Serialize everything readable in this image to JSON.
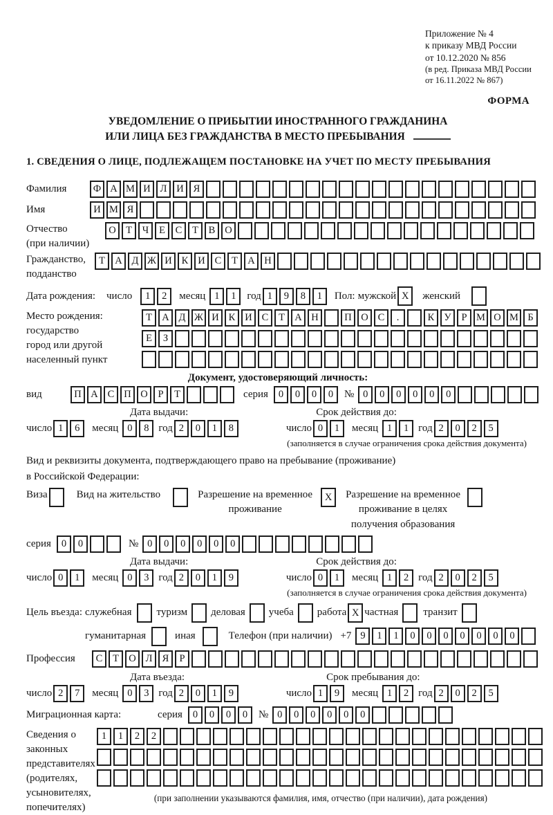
{
  "doc": {
    "appendix_line1": "Приложение № 4",
    "appendix_line2": "к приказу МВД России",
    "appendix_line3": "от 10.12.2020 № 856",
    "appendix_line4": "(в ред. Приказа МВД России",
    "appendix_line5": "от 16.11.2022 № 867)",
    "form_label": "ФОРМА",
    "title_line1": "УВЕДОМЛЕНИЕ О ПРИБЫТИИ ИНОСТРАННОГО ГРАЖДАНИНА",
    "title_line2": "ИЛИ ЛИЦА БЕЗ ГРАЖДАНСТВА В МЕСТО ПРЕБЫВАНИЯ",
    "section1_heading": "1. СВЕДЕНИЯ О ЛИЦЕ, ПОДЛЕЖАЩЕМ ПОСТАНОВКЕ НА УЧЕТ ПО МЕСТУ ПРЕБЫВАНИЯ"
  },
  "shared": {
    "day": "число",
    "month": "месяц",
    "year": "год",
    "issue_date": "Дата выдачи:",
    "valid_until": "Срок действия до:",
    "series": "серия",
    "number": "№",
    "restriction_note": "(заполняется в случае ограничения срока действия документа)"
  },
  "person": {
    "surname_label": "Фамилия",
    "surname": {
      "text": "ФАМИЛИЯ",
      "count": 27
    },
    "name_label": "Имя",
    "name": {
      "text": "ИМЯ",
      "count": 27
    },
    "patronymic_label1": "Отчество",
    "patronymic_label2": "(при наличии)",
    "patronymic": {
      "text": "ОТЧЕСТВО",
      "count": 26
    },
    "citizenship_label1": "Гражданство,",
    "citizenship_label2": "подданство",
    "citizenship": {
      "text": "ТАДЖИКИСТАН",
      "count": 27
    },
    "birth_date_label": "Дата рождения:",
    "birth_day": "12",
    "birth_month": "11",
    "birth_year": "1981",
    "sex_label": "Пол:",
    "male_label": "мужской",
    "male_cb": "X",
    "female_label": "женский",
    "female_cb": {
      "text": "",
      "count": 1
    },
    "birth_place_label1": "Место рождения:",
    "birth_place_label2": "государство",
    "birth_place_label3": "город или другой",
    "birth_place_label4": "населенный пункт",
    "birth_place_row1": {
      "text": "ТАДЖИКИСТАН ПОС. КУРМОМБ",
      "count": 24
    },
    "birth_place_row2": {
      "text": "ЕЗ",
      "count": 24
    },
    "birth_place_row3": {
      "text": "",
      "count": 24
    }
  },
  "identity_doc": {
    "heading": "Документ, удостоверяющий личность:",
    "kind_label": "вид",
    "kind": {
      "text": "ПАСПОРТ",
      "count": 10
    },
    "series": "0000",
    "number": {
      "text": "000000",
      "count": 11
    },
    "issue_day": "16",
    "issue_month": "08",
    "issue_year": "2018",
    "valid_day": "01",
    "valid_month": "11",
    "valid_year": "2025"
  },
  "stay_doc": {
    "heading_line1": "Вид и реквизиты документа, подтверждающего право на пребывание (проживание)",
    "heading_line2": "в Российской Федерации:",
    "visa_label": "Виза",
    "visa_cb": {
      "text": "",
      "count": 1
    },
    "residence_label": "Вид на жительство",
    "residence_cb": {
      "text": "",
      "count": 1
    },
    "temp_label1": "Разрешение на временное",
    "temp_label2": "проживание",
    "temp_cb": "X",
    "edu_label1": "Разрешение на временное",
    "edu_label2": "проживание в целях",
    "edu_label3": "получения образования",
    "edu_cb": {
      "text": "",
      "count": 1
    },
    "series": {
      "text": "00",
      "count": 4
    },
    "number": {
      "text": "000000",
      "count": 14
    },
    "issue_day": "01",
    "issue_month": "03",
    "issue_year": "2019",
    "valid_day": "01",
    "valid_month": "12",
    "valid_year": "2025"
  },
  "visit": {
    "purpose_label": "Цель въезда:",
    "p1_label": "служебная",
    "p1_cb": {
      "text": "",
      "count": 1
    },
    "p2_label": "туризм",
    "p2_cb": {
      "text": "",
      "count": 1
    },
    "p3_label": "деловая",
    "p3_cb": {
      "text": "",
      "count": 1
    },
    "p4_label": "учеба",
    "p4_cb": {
      "text": "",
      "count": 1
    },
    "p5_label": "работа",
    "p5_cb": "X",
    "p6_label": "частная",
    "p6_cb": {
      "text": "",
      "count": 1
    },
    "p7_label": "транзит",
    "p7_cb": {
      "text": "",
      "count": 1
    },
    "p8_label": "гуманитарная",
    "p8_cb": {
      "text": "",
      "count": 1
    },
    "p9_label": "иная",
    "p9_cb": {
      "text": "",
      "count": 1
    },
    "phone_label": "Телефон (при наличии)",
    "phone_prefix": "+7",
    "phone": {
      "text": "9110000000",
      "count": 11
    },
    "profession_label": "Профессия",
    "profession": {
      "text": "СТОЛЯР",
      "count": 27
    },
    "entry_date_label": "Дата въезда:",
    "entry_day": "27",
    "entry_month": "03",
    "entry_year": "2019",
    "stay_until_label": "Срок пребывания до:",
    "stay_day": "19",
    "stay_month": "12",
    "stay_year": "2025",
    "migration_card_label": "Миграционная карта:",
    "mc_series": "0000",
    "mc_number": {
      "text": "000000",
      "count": 11
    }
  },
  "representatives": {
    "label1": "Сведения о",
    "label2": "законных",
    "label3": "представителях",
    "label4": "(родителях,",
    "label5": "усыновителях,",
    "label6": "попечителях)",
    "row1": {
      "text": "1122",
      "count": 27
    },
    "row2": {
      "text": "",
      "count": 27
    },
    "row3": {
      "text": "",
      "count": 27
    },
    "note": "(при заполнении указываются фамилия, имя, отчество (при наличии), дата рождения)"
  }
}
